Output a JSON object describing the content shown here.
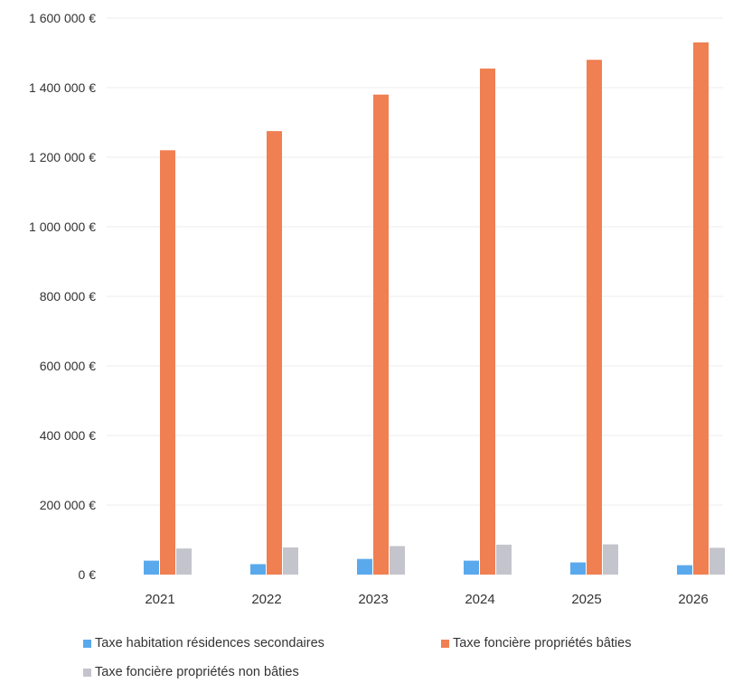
{
  "chart_data": {
    "type": "bar",
    "title": "",
    "xlabel": "",
    "ylabel": "",
    "categories": [
      "2021",
      "2022",
      "2023",
      "2024",
      "2025",
      "2026"
    ],
    "ylim": [
      0,
      1600000
    ],
    "yticks": [
      {
        "value": 0,
        "label": "0 €"
      },
      {
        "value": 200000,
        "label": "200 000 €"
      },
      {
        "value": 400000,
        "label": "400 000 €"
      },
      {
        "value": 600000,
        "label": "600 000 €"
      },
      {
        "value": 800000,
        "label": "800 000 €"
      },
      {
        "value": 1000000,
        "label": "1 000 000 €"
      },
      {
        "value": 1200000,
        "label": "1 200 000 €"
      },
      {
        "value": 1400000,
        "label": "1 400 000 €"
      },
      {
        "value": 1600000,
        "label": "1 600 000 €"
      }
    ],
    "grid": true,
    "legend_position": "bottom",
    "series": [
      {
        "name": "Taxe habitation résidences secondaires",
        "color": "#5aa9ec",
        "values": [
          40000,
          30000,
          45000,
          40000,
          35000,
          27000
        ]
      },
      {
        "name": "Taxe foncière propriétés bâties",
        "color": "#f07f52",
        "values": [
          1220000,
          1275000,
          1380000,
          1455000,
          1480000,
          1530000
        ]
      },
      {
        "name": "Taxe foncière propriétés non bâties",
        "color": "#c4c4cc",
        "values": [
          75000,
          78000,
          82000,
          86000,
          87000,
          77000
        ]
      }
    ]
  }
}
